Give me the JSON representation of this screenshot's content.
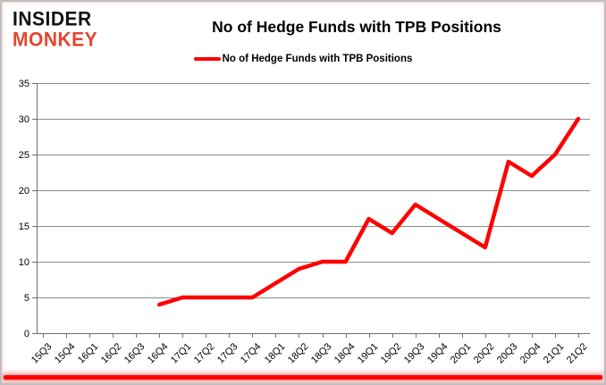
{
  "logo": {
    "line1": "INSIDER",
    "line2": "MONKEY"
  },
  "chart_data": {
    "type": "line",
    "title": "No of Hedge Funds with TPB Positions",
    "legend": "No of Hedge Funds with TPB Positions",
    "legend_position": "top-center",
    "xlabel": "",
    "ylabel": "",
    "ylim": [
      0,
      35
    ],
    "ytick_interval": 5,
    "grid": true,
    "categories": [
      "15Q3",
      "15Q4",
      "16Q1",
      "16Q2",
      "16Q3",
      "16Q4",
      "17Q1",
      "17Q2",
      "17Q3",
      "17Q4",
      "18Q1",
      "18Q2",
      "18Q3",
      "18Q4",
      "19Q1",
      "19Q2",
      "19Q3",
      "19Q4",
      "20Q1",
      "20Q2",
      "20Q3",
      "20Q4",
      "21Q1",
      "21Q2"
    ],
    "series": [
      {
        "name": "No of Hedge Funds with TPB Positions",
        "color": "#ff0000",
        "values": [
          null,
          null,
          null,
          null,
          null,
          4,
          5,
          5,
          5,
          5,
          7,
          9,
          10,
          10,
          16,
          14,
          18,
          16,
          14,
          12,
          24,
          22,
          25,
          30
        ]
      }
    ],
    "colors": {
      "line": "#ff0000",
      "grid": "#8c8c8c",
      "axis": "#6e6e6e",
      "text": "#000000",
      "logo_insider": "#121212",
      "logo_monkey": "#e8432e",
      "accent_bar": "#ff0000"
    }
  }
}
